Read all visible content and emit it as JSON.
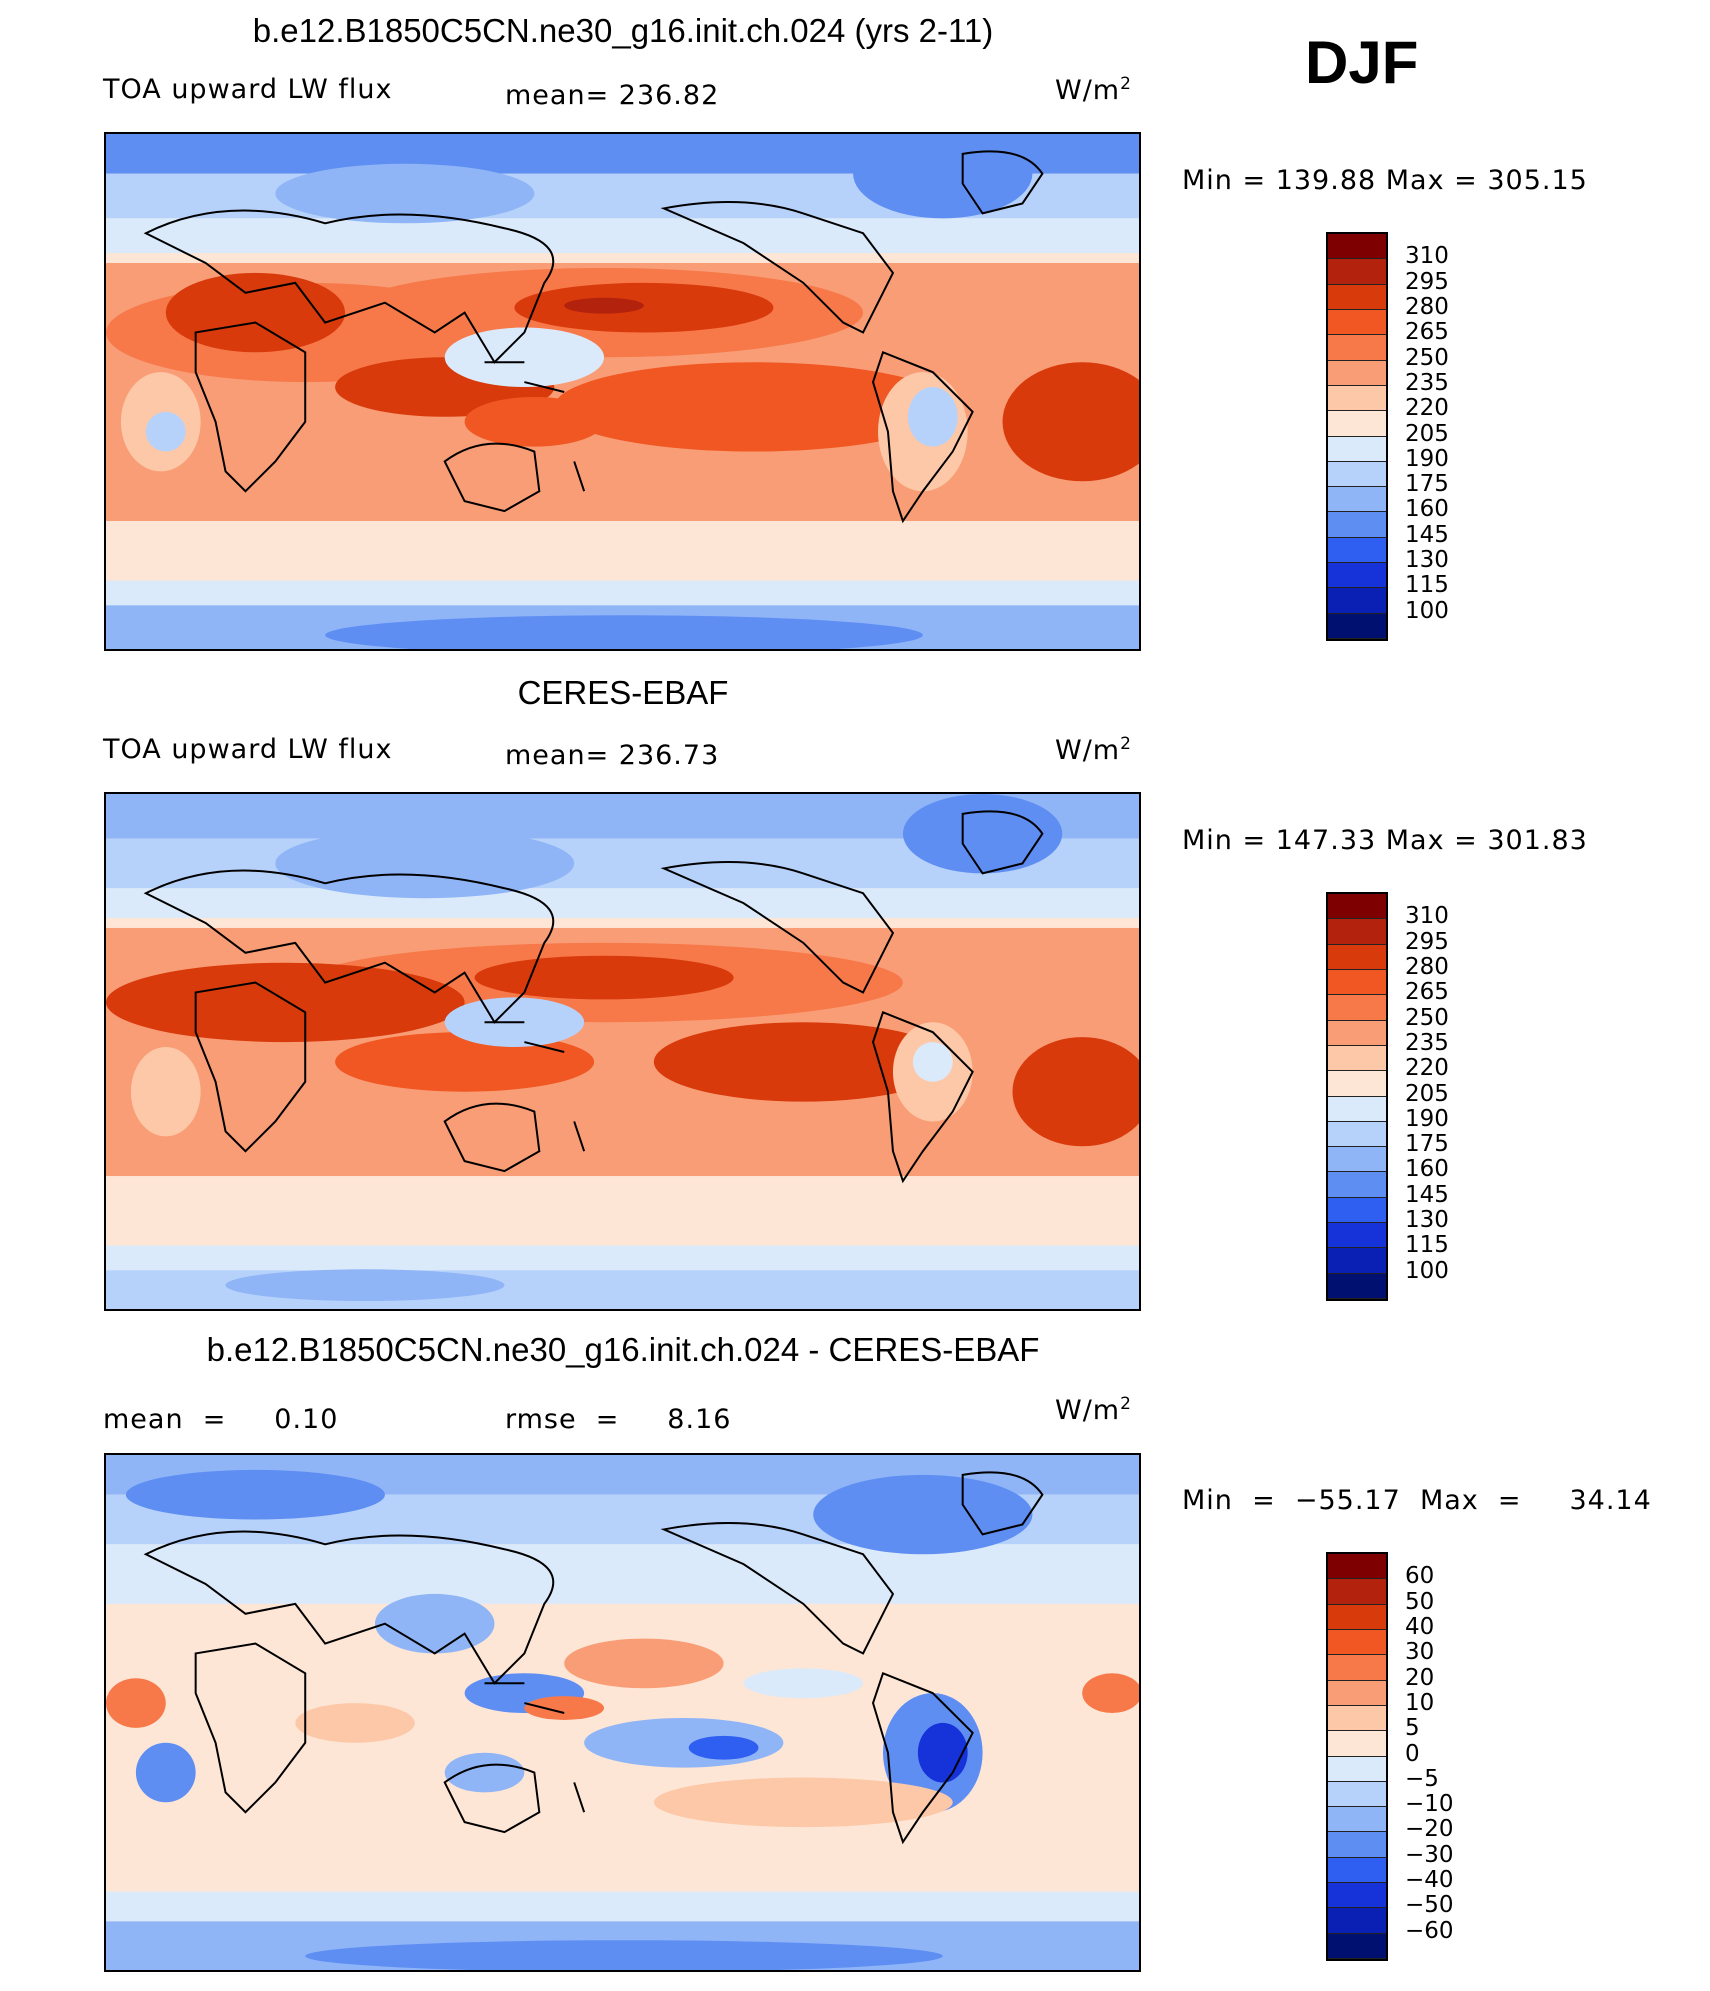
{
  "season": "DJF",
  "chart_data": [
    {
      "type": "heatmap",
      "title": "b.e12.B1850C5CN.ne30_g16.init.ch.024 (yrs 2-11)",
      "variable_label": "TOA upward LW flux",
      "stat_text": "mean= 236.82",
      "units": "W/m",
      "units_sup": "2",
      "minmax_text": "Min  =  139.88  Max  =  305.15",
      "colorbar": {
        "levels": [
          "310",
          "295",
          "280",
          "265",
          "250",
          "235",
          "220",
          "205",
          "190",
          "175",
          "160",
          "145",
          "130",
          "115",
          "100"
        ],
        "colors": [
          "#7f0000",
          "#b2220c",
          "#d83a0b",
          "#f05722",
          "#f7794a",
          "#f99d76",
          "#fdc8a8",
          "#fde6d6",
          "#dbeafb",
          "#b7d2fa",
          "#8fb5f7",
          "#5f8ef3",
          "#2f5ff0",
          "#1533d8",
          "#0a1fb3",
          "#001070"
        ]
      }
    },
    {
      "type": "heatmap",
      "title": "CERES-EBAF",
      "variable_label": "TOA upward LW flux",
      "stat_text": "mean= 236.73",
      "units": "W/m",
      "units_sup": "2",
      "minmax_text": "Min  =  147.33  Max  =  301.83",
      "colorbar": {
        "levels": [
          "310",
          "295",
          "280",
          "265",
          "250",
          "235",
          "220",
          "205",
          "190",
          "175",
          "160",
          "145",
          "130",
          "115",
          "100"
        ],
        "colors": [
          "#7f0000",
          "#b2220c",
          "#d83a0b",
          "#f05722",
          "#f7794a",
          "#f99d76",
          "#fdc8a8",
          "#fde6d6",
          "#dbeafb",
          "#b7d2fa",
          "#8fb5f7",
          "#5f8ef3",
          "#2f5ff0",
          "#1533d8",
          "#0a1fb3",
          "#001070"
        ]
      }
    },
    {
      "type": "heatmap",
      "title": "b.e12.B1850C5CN.ne30_g16.init.ch.024 - CERES-EBAF",
      "stat_left": "mean  =     0.10",
      "stat_text": "rmse  =     8.16",
      "units": "W/m",
      "units_sup": "2",
      "minmax_text": "Min  =  −55.17  Max  =     34.14",
      "colorbar": {
        "levels": [
          "60",
          "50",
          "40",
          "30",
          "20",
          "10",
          "5",
          "0",
          "−5",
          "−10",
          "−20",
          "−30",
          "−40",
          "−50",
          "−60"
        ],
        "colors": [
          "#7f0000",
          "#b2220c",
          "#d83a0b",
          "#f05722",
          "#f7794a",
          "#f99d76",
          "#fdc8a8",
          "#fde6d6",
          "#dbeafb",
          "#b7d2fa",
          "#8fb5f7",
          "#5f8ef3",
          "#2f5ff0",
          "#1533d8",
          "#0a1fb3",
          "#001070"
        ]
      }
    }
  ]
}
